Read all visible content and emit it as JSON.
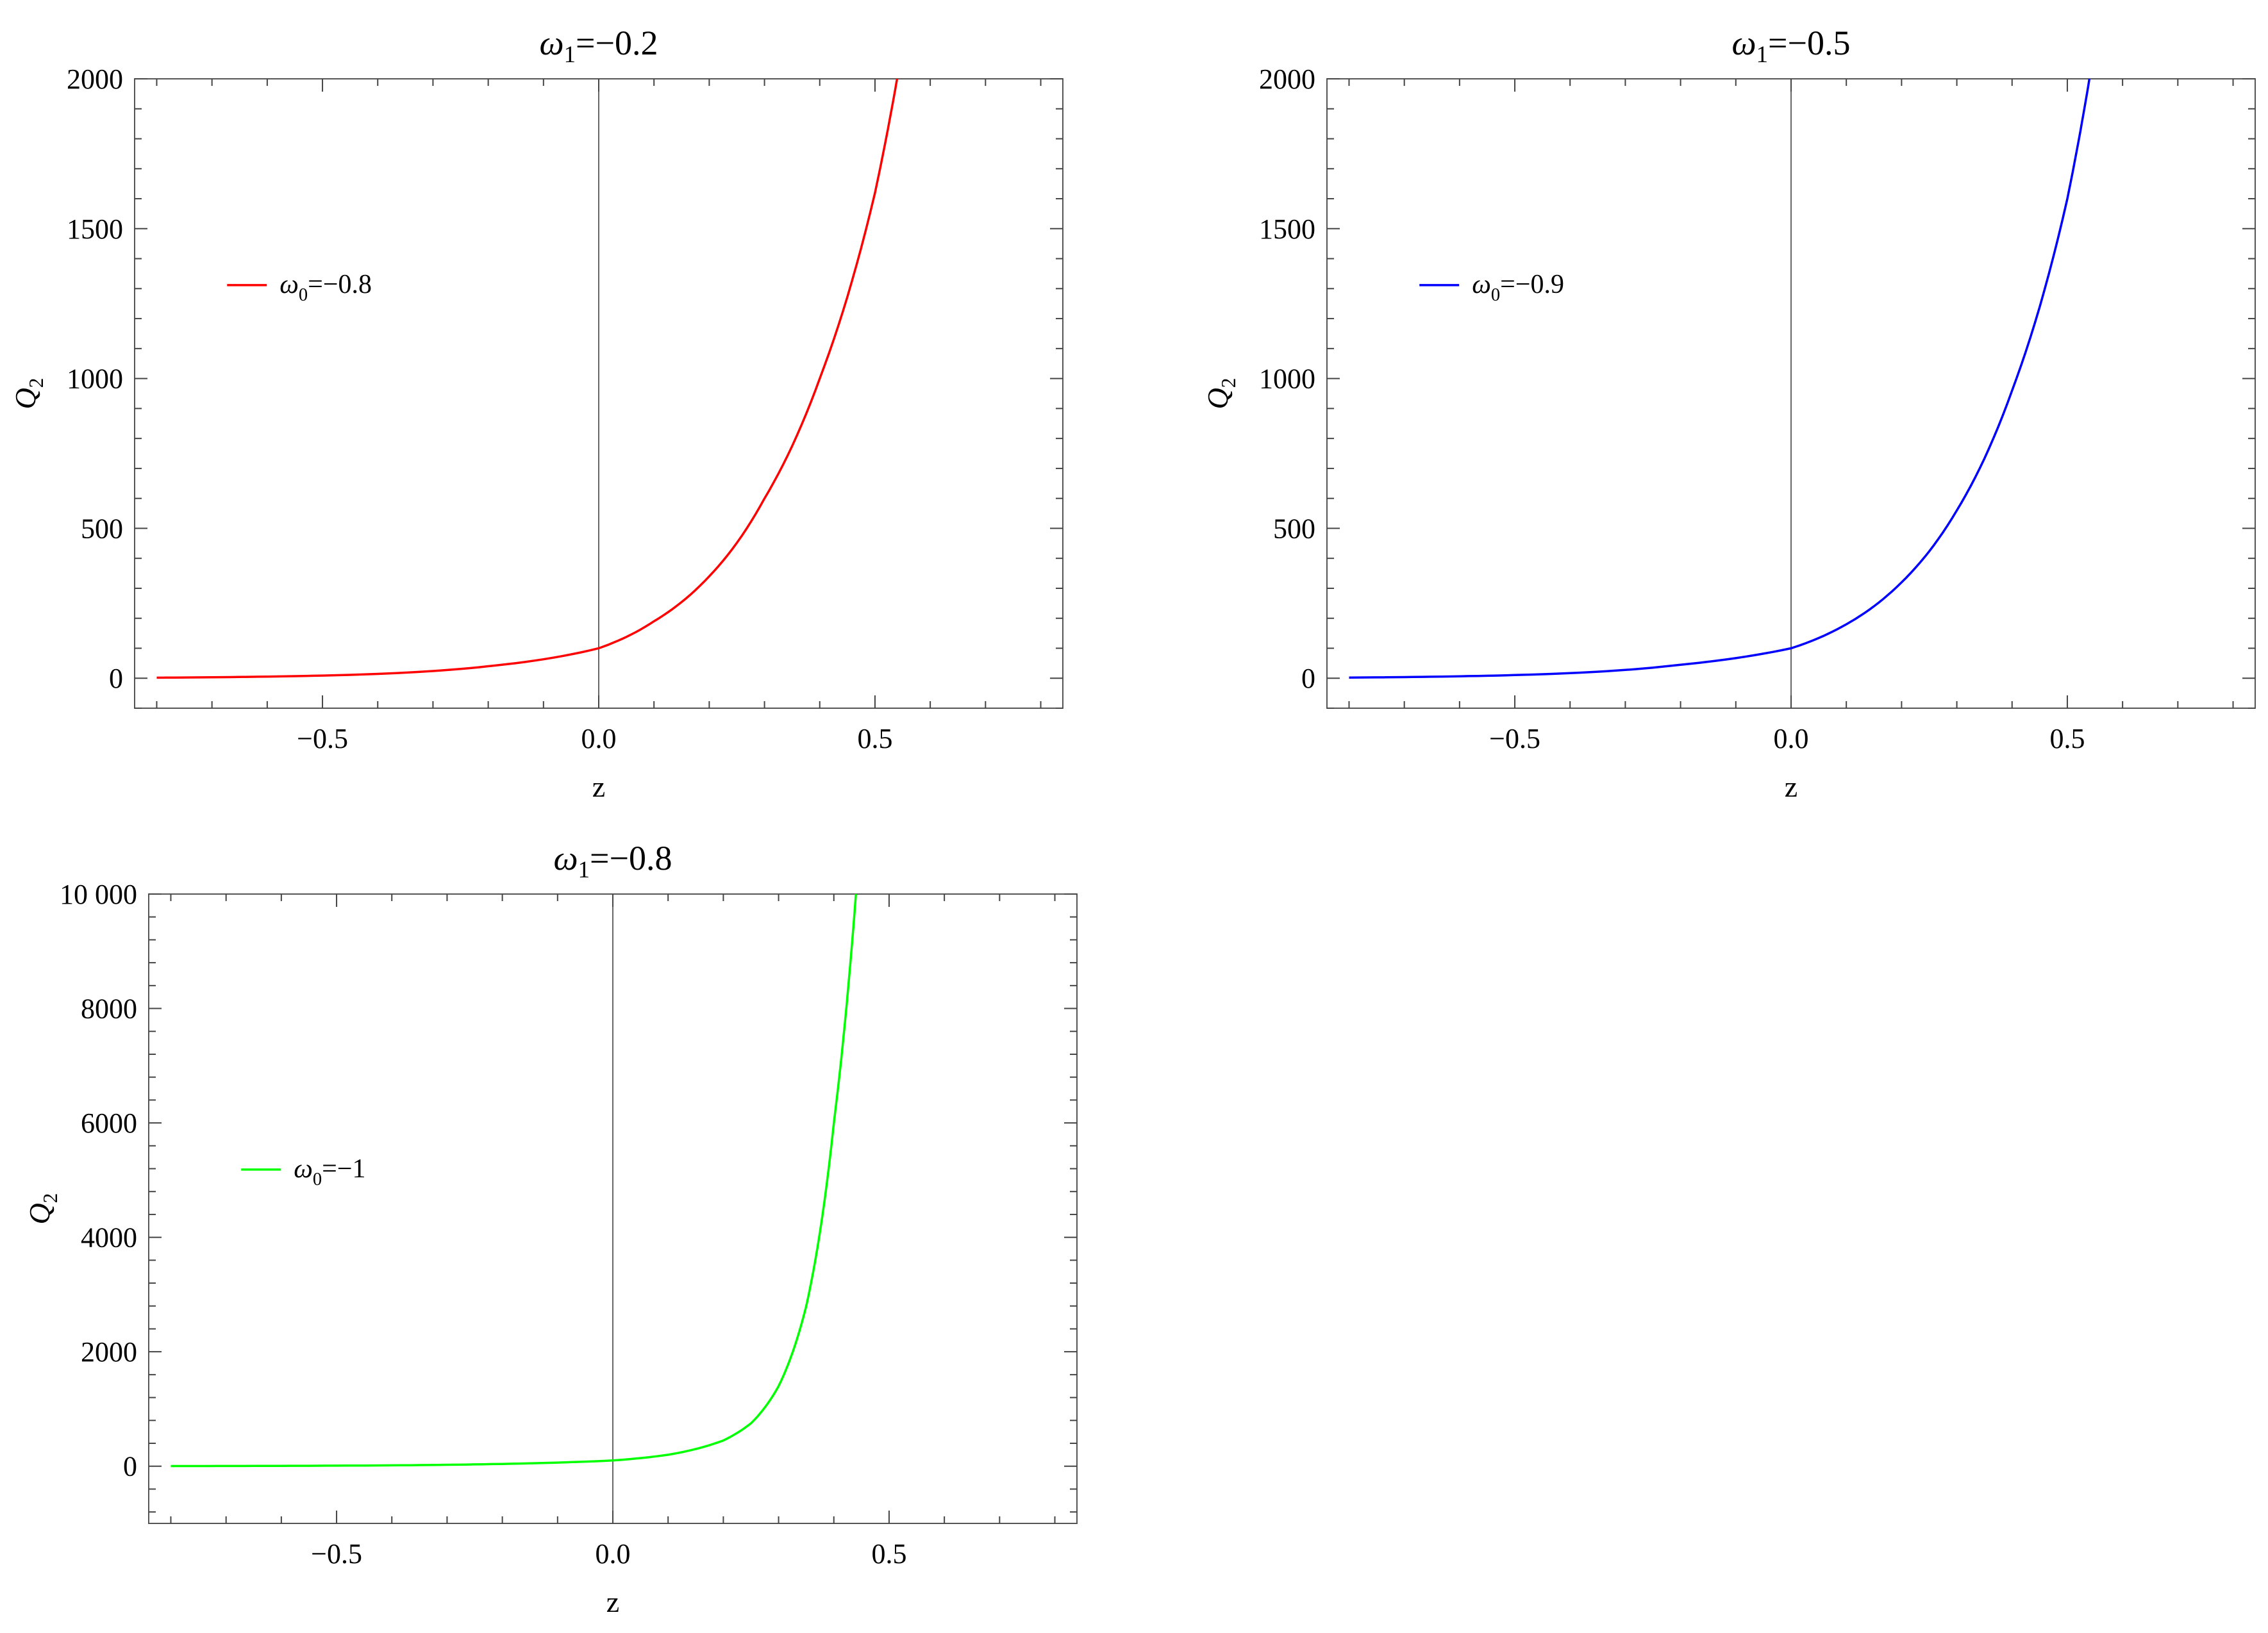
{
  "chart_data": [
    {
      "type": "line",
      "title": "ω₁=−0.2",
      "title_parts": {
        "base": "ω",
        "sub": "1",
        "rest": "=−0.2"
      },
      "xlabel": "z",
      "ylabel": "Q₂",
      "ylabel_parts": {
        "base": "Q",
        "sub": "2"
      },
      "xlim": [
        -0.84,
        0.84
      ],
      "ylim": [
        -100,
        2000
      ],
      "xticks": [
        -0.5,
        0.0,
        0.5
      ],
      "xtick_labels": [
        "−0.5",
        "0.0",
        "0.5"
      ],
      "yticks": [
        0,
        500,
        1000,
        1500,
        2000
      ],
      "ytick_labels": [
        "0",
        "500",
        "1000",
        "1500",
        "2000"
      ],
      "grid": false,
      "zero_line": true,
      "legend_position": "left-middle",
      "legend_position_frac": [
        0.13,
        0.34
      ],
      "series": [
        {
          "name": "ω₀=−0.8",
          "name_parts": {
            "base": "ω",
            "sub": "0",
            "rest": "=−0.8"
          },
          "color": "#ff0000",
          "x": [
            -0.8,
            -0.6,
            -0.4,
            -0.2,
            0.0,
            0.1,
            0.2,
            0.3,
            0.4,
            0.5,
            0.54
          ],
          "y": [
            1.8,
            5.4,
            14.4,
            40,
            100,
            190,
            340,
            600,
            1000,
            1620,
            2000
          ]
        }
      ]
    },
    {
      "type": "line",
      "title": "ω₁=−0.5",
      "title_parts": {
        "base": "ω",
        "sub": "1",
        "rest": "=−0.5"
      },
      "xlabel": "z",
      "ylabel": "Q₂",
      "ylabel_parts": {
        "base": "Q",
        "sub": "2"
      },
      "xlim": [
        -0.84,
        0.84
      ],
      "ylim": [
        -100,
        2000
      ],
      "xticks": [
        -0.5,
        0.0,
        0.5
      ],
      "xtick_labels": [
        "−0.5",
        "0.0",
        "0.5"
      ],
      "yticks": [
        0,
        500,
        1000,
        1500,
        2000
      ],
      "ytick_labels": [
        "0",
        "500",
        "1000",
        "1500",
        "2000"
      ],
      "grid": false,
      "zero_line": true,
      "legend_position": "left-middle",
      "legend_position_frac": [
        0.13,
        0.34
      ],
      "series": [
        {
          "name": "ω₀=−0.9",
          "name_parts": {
            "base": "ω",
            "sub": "0",
            "rest": "=−0.9"
          },
          "color": "#0000ff",
          "x": [
            -0.8,
            -0.6,
            -0.4,
            -0.2,
            0.0,
            0.1,
            0.2,
            0.3,
            0.4,
            0.5,
            0.54
          ],
          "y": [
            2.2,
            6.5,
            17,
            45,
            100,
            180,
            320,
            560,
            960,
            1600,
            2000
          ]
        }
      ]
    },
    {
      "type": "line",
      "title": "ω₁=−0.8",
      "title_parts": {
        "base": "ω",
        "sub": "1",
        "rest": "=−0.8"
      },
      "xlabel": "z",
      "ylabel": "Q₂",
      "ylabel_parts": {
        "base": "Q",
        "sub": "2"
      },
      "xlim": [
        -0.84,
        0.84
      ],
      "ylim": [
        -1000,
        10000
      ],
      "xticks": [
        -0.5,
        0.0,
        0.5
      ],
      "xtick_labels": [
        "−0.5",
        "0.0",
        "0.5"
      ],
      "yticks": [
        0,
        2000,
        4000,
        6000,
        8000,
        10000
      ],
      "ytick_labels": [
        "0",
        "2000",
        "4000",
        "6000",
        "8000",
        "10 000"
      ],
      "grid": false,
      "zero_line": true,
      "legend_position": "left-middle",
      "legend_position_frac": [
        0.13,
        0.45
      ],
      "series": [
        {
          "name": "ω₀=−1",
          "name_parts": {
            "base": "ω",
            "sub": "0",
            "rest": "=−1"
          },
          "color": "#00ff00",
          "x": [
            -0.8,
            -0.6,
            -0.4,
            -0.2,
            0.0,
            0.1,
            0.2,
            0.25,
            0.3,
            0.35,
            0.4,
            0.44
          ],
          "y": [
            2,
            6,
            15,
            40,
            100,
            200,
            450,
            750,
            1400,
            2800,
            6000,
            10000
          ]
        }
      ]
    }
  ]
}
